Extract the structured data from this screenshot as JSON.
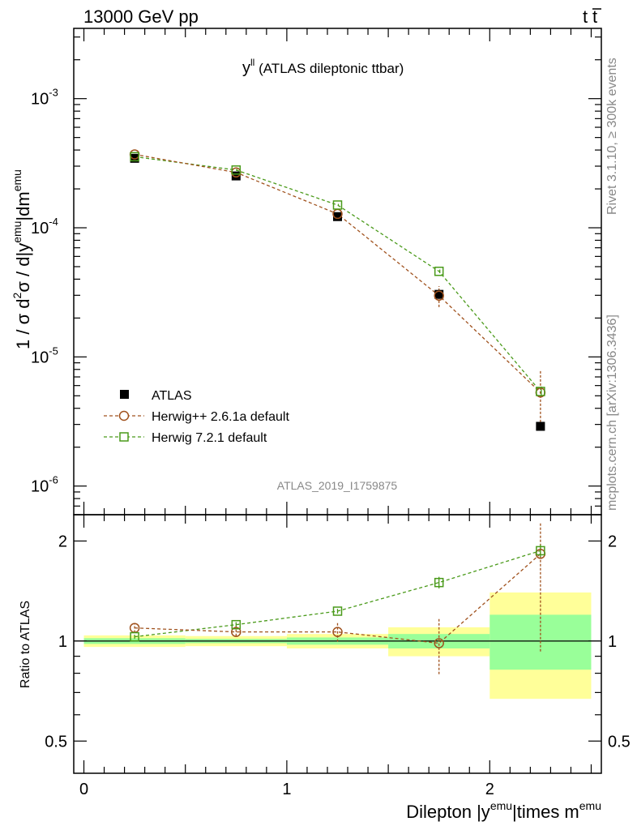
{
  "header": {
    "left": "13000 GeV pp",
    "right_main": "t",
    "right_bar": "t"
  },
  "side_labels": {
    "rivet": "Rivet 3.1.10, ≥ 300k events",
    "mcplots": "mcplots.cern.ch [arXiv:1306.3436]"
  },
  "chart_data": [
    {
      "type": "scatter",
      "title_main": "y",
      "title_sup": "ll",
      "title_rest": " (ATLAS dileptonic ttbar)",
      "watermark": "ATLAS_2019_I1759875",
      "ylabel": {
        "main": "1 / σ  d",
        "sup1": "2",
        "mid": "σ / d|y",
        "sup2": "emu",
        "end": "|dm",
        "sup3": "emu"
      },
      "yscale": "log",
      "ylim": [
        6e-07,
        0.0035
      ],
      "xlim": [
        -0.05,
        2.55
      ],
      "y_ticks": [
        {
          "base": "10",
          "exp": "-3",
          "value": 0.001
        },
        {
          "base": "10",
          "exp": "-4",
          "value": 0.0001
        },
        {
          "base": "10",
          "exp": "-5",
          "value": 1e-05
        },
        {
          "base": "10",
          "exp": "-6",
          "value": 1e-06
        }
      ],
      "x": [
        0.25,
        0.75,
        1.25,
        1.75,
        2.25
      ],
      "bin_edges": [
        0,
        0.5,
        1.0,
        1.5,
        2.0,
        2.5
      ],
      "legend": {
        "placement": "bottom-left"
      },
      "series": [
        {
          "name": "ATLAS",
          "marker": "filled-square",
          "color": "#000000",
          "values": [
            0.000345,
            0.000252,
            0.000122,
            3.05e-05,
            2.9e-06
          ]
        },
        {
          "name": "Herwig++ 2.6.1a default",
          "marker": "open-circle",
          "color": "#a0521e",
          "values": [
            0.00037,
            0.000268,
            0.000128,
            2.98e-05,
            5.3e-06
          ],
          "err_low": [
            1.5e-05,
            9e-06,
            4e-06,
            5.5e-06,
            2.6e-06
          ],
          "err_high": [
            1.5e-05,
            9e-06,
            4e-06,
            5.5e-06,
            2.6e-06
          ]
        },
        {
          "name": "Herwig 7.2.1 default",
          "marker": "open-square",
          "color": "#4a9a1a",
          "values": [
            0.000355,
            0.00028,
            0.00015,
            4.6e-05,
            5.4e-06
          ],
          "err_low": [
            6e-06,
            5e-06,
            3e-06,
            1.5e-06,
            5e-07
          ],
          "err_high": [
            6e-06,
            5e-06,
            3e-06,
            1.5e-06,
            5e-07
          ]
        }
      ]
    },
    {
      "type": "scatter",
      "ylabel": "Ratio to ATLAS",
      "xlabel": {
        "main": "Dilepton |y",
        "sup1": "emu",
        "mid": "|times m",
        "sup2": "emu"
      },
      "yscale": "log",
      "ylim": [
        0.4,
        2.4
      ],
      "y_ticks": [
        {
          "label": "0.5",
          "value": 0.5
        },
        {
          "label": "1",
          "value": 1.0
        },
        {
          "label": "2",
          "value": 2.0
        }
      ],
      "x_ticks": [
        {
          "label": "0",
          "value": 0
        },
        {
          "label": "1",
          "value": 1
        },
        {
          "label": "2",
          "value": 2
        }
      ],
      "x": [
        0.25,
        0.75,
        1.25,
        1.75,
        2.25
      ],
      "band_stat": [
        [
          0.98,
          1.02
        ],
        [
          0.985,
          1.015
        ],
        [
          0.975,
          1.025
        ],
        [
          0.95,
          1.05
        ],
        [
          0.82,
          1.2
        ]
      ],
      "band_total": [
        [
          0.96,
          1.04
        ],
        [
          0.965,
          1.035
        ],
        [
          0.95,
          1.05
        ],
        [
          0.9,
          1.1
        ],
        [
          0.67,
          1.4
        ]
      ],
      "colors": {
        "stat": "#99ff99",
        "total": "#ffff99"
      },
      "series": [
        {
          "name": "Herwig++ 2.6.1a default",
          "color": "#a0521e",
          "values": [
            1.095,
            1.065,
            1.065,
            0.985,
            1.83
          ],
          "err_low": [
            0.035,
            0.03,
            0.07,
            0.19,
            0.9
          ],
          "err_high": [
            0.035,
            0.03,
            0.07,
            0.19,
            0.45
          ]
        },
        {
          "name": "Herwig 7.2.1 default",
          "color": "#4a9a1a",
          "values": [
            1.03,
            1.12,
            1.23,
            1.5,
            1.87
          ],
          "err_low": [
            0.015,
            0.02,
            0.02,
            0.06,
            0.08
          ],
          "err_high": [
            0.015,
            0.02,
            0.02,
            0.06,
            0.08
          ]
        }
      ]
    }
  ]
}
